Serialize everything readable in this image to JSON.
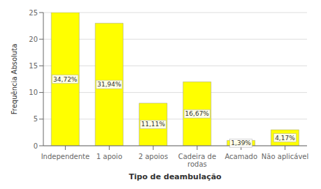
{
  "chart_data": {
    "type": "bar",
    "categories": [
      "Independente",
      "1 apoio",
      "2 apoios",
      "Cadeira de\nrodas",
      "Acamado",
      "Não aplicável"
    ],
    "values": [
      25,
      23,
      8,
      12,
      1,
      3
    ],
    "value_labels": [
      "34,72%",
      "31,94%",
      "11,11%",
      "16,67%",
      "1,39%",
      "4,17%"
    ],
    "data_labels": true,
    "color": "#FFFF00",
    "xlabel": "Tipo de deambulação",
    "ylabel": "Frequência Absoluta",
    "ylim": [
      0,
      25
    ],
    "yticks": [
      0,
      5,
      10,
      15,
      20,
      25
    ],
    "grid": true
  }
}
